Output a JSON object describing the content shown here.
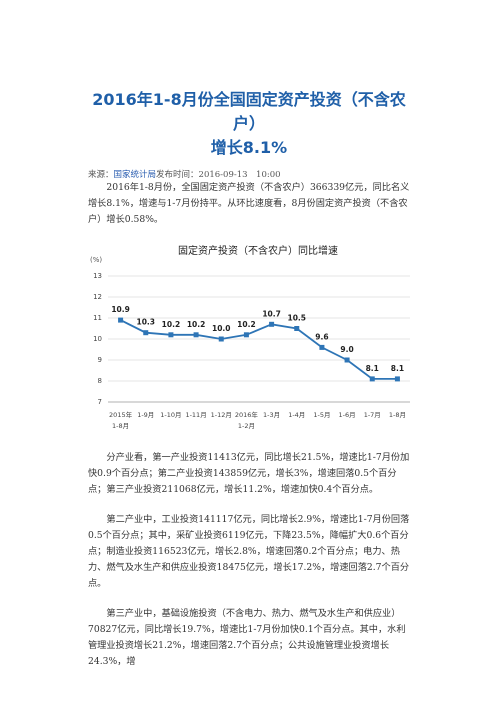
{
  "header": {
    "title_line1": "2016年1-8月份全国固定资产投资（不含农户）",
    "title_line2": "增长8.1%"
  },
  "meta": {
    "source_label": "来源：",
    "source": "国家统计局",
    "published": "发布时间：2016-09-13　10:00"
  },
  "paragraphs": [
    "2016年1-8月份，全国固定资产投资（不含农户）366339亿元，同比名义增长8.1%，增速与1-7月份持平。从环比速度看，8月份固定资产投资（不含农户）增长0.58%。",
    "分产业看，第一产业投资11413亿元，同比增长21.5%，增速比1-7月份加快0.9个百分点；第二产业投资143859亿元，增长3%，增速回落0.5个百分点；第三产业投资211068亿元，增长11.2%，增速加快0.4个百分点。",
    "第二产业中，工业投资141117亿元，同比增长2.9%，增速比1-7月份回落0.5个百分点；其中，采矿业投资6119亿元，下降23.5%，降幅扩大0.6个百分点；制造业投资116523亿元，增长2.8%，增速回落0.2个百分点；电力、热力、燃气及水生产和供应业投资18475亿元，增长17.2%，增速回落2.7个百分点。",
    "第三产业中，基础设施投资（不含电力、热力、燃气及水生产和供应业）70827亿元，同比增长19.7%，增速比1-7月份加快0.1个百分点。其中，水利管理业投资增长21.2%，增速回落2.7个百分点；公共设施管理业投资增长24.3%，增"
  ],
  "chart_data": {
    "type": "line",
    "title": "固定资产投资（不含农户）同比增速",
    "y_label": "(%)",
    "categories": [
      "2015年1-8月",
      "1-9月",
      "1-10月",
      "1-11月",
      "1-12月",
      "2016年1-2月",
      "1-3月",
      "1-4月",
      "1-5月",
      "1-6月",
      "1-7月",
      "1-8月"
    ],
    "values": [
      10.9,
      10.3,
      10.2,
      10.2,
      10.0,
      10.2,
      10.7,
      10.5,
      9.6,
      9.0,
      8.1,
      8.1
    ],
    "value_labels": [
      "10.9",
      "10.3",
      "10.2",
      "10.2",
      "10.0",
      "10.2",
      "10.7",
      "10.5",
      "9.6",
      "9.0",
      "8.1",
      "8.1"
    ],
    "color": "#2e75b6",
    "ylim": [
      7,
      13
    ],
    "yticks": [
      7,
      8,
      9,
      10,
      11,
      12,
      13
    ],
    "grid": true
  }
}
